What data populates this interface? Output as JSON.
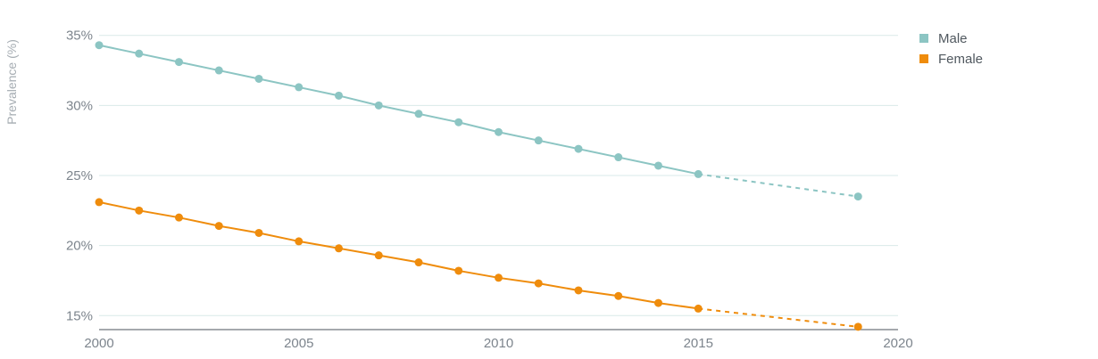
{
  "chart_data": {
    "type": "line",
    "title": "",
    "xlabel": "",
    "ylabel": "Prevalence (%)",
    "xlim": [
      2000,
      2020
    ],
    "ylim": [
      14,
      36
    ],
    "x_ticks": [
      2000,
      2005,
      2010,
      2015,
      2020
    ],
    "y_ticks": [
      15,
      20,
      25,
      30,
      35
    ],
    "y_tick_labels": [
      "15%",
      "20%",
      "25%",
      "30%",
      "35%"
    ],
    "grid": "horizontal",
    "legend_position": "top-right",
    "series": [
      {
        "name": "Male",
        "color": "#8cc5c3",
        "x": [
          2000,
          2001,
          2002,
          2003,
          2004,
          2005,
          2006,
          2007,
          2008,
          2009,
          2010,
          2011,
          2012,
          2013,
          2014,
          2015
        ],
        "values": [
          34.3,
          33.7,
          33.1,
          32.5,
          31.9,
          31.3,
          30.7,
          30.0,
          29.4,
          28.8,
          28.1,
          27.5,
          26.9,
          26.3,
          25.7,
          25.1
        ],
        "projection": {
          "x": [
            2015,
            2019
          ],
          "values": [
            25.1,
            23.5
          ]
        }
      },
      {
        "name": "Female",
        "color": "#ef8c0c",
        "x": [
          2000,
          2001,
          2002,
          2003,
          2004,
          2005,
          2006,
          2007,
          2008,
          2009,
          2010,
          2011,
          2012,
          2013,
          2014,
          2015
        ],
        "values": [
          23.1,
          22.5,
          22.0,
          21.4,
          20.9,
          20.3,
          19.8,
          19.3,
          18.8,
          18.2,
          17.7,
          17.3,
          16.8,
          16.4,
          15.9,
          15.5
        ],
        "projection": {
          "x": [
            2015,
            2019
          ],
          "values": [
            15.5,
            14.2
          ]
        }
      }
    ]
  }
}
